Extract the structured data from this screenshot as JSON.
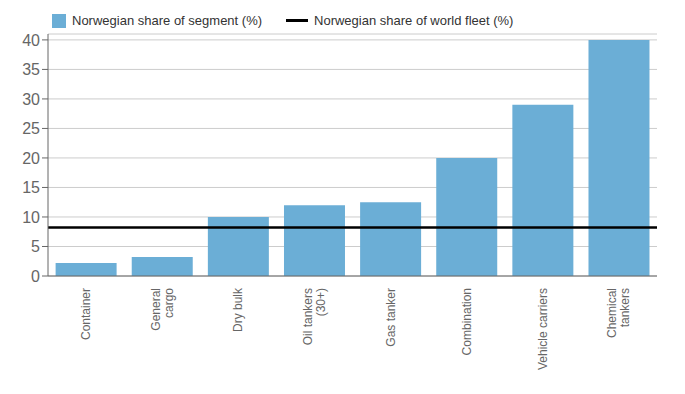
{
  "chart_data": {
    "type": "bar",
    "categories": [
      "Container",
      "General\ncargo",
      "Dry bulk",
      "Oil tankers\n(30+)",
      "Gas tanker",
      "Combination",
      "Vehicle carriers",
      "Chemical\ntankers"
    ],
    "series": [
      {
        "name": "Norwegian share of segment (%)",
        "color": "#6baed6",
        "values": [
          2.2,
          3.2,
          10.0,
          12.0,
          12.5,
          20.0,
          29.0,
          40.0
        ]
      }
    ],
    "reference_line": {
      "name": "Norwegian share of world fleet (%)",
      "value": 8.2,
      "color": "#000000"
    },
    "ylim": [
      0,
      41
    ],
    "yticks": [
      0,
      5,
      10,
      15,
      20,
      25,
      30,
      35,
      40
    ],
    "grid": true,
    "legend": "upper left"
  }
}
